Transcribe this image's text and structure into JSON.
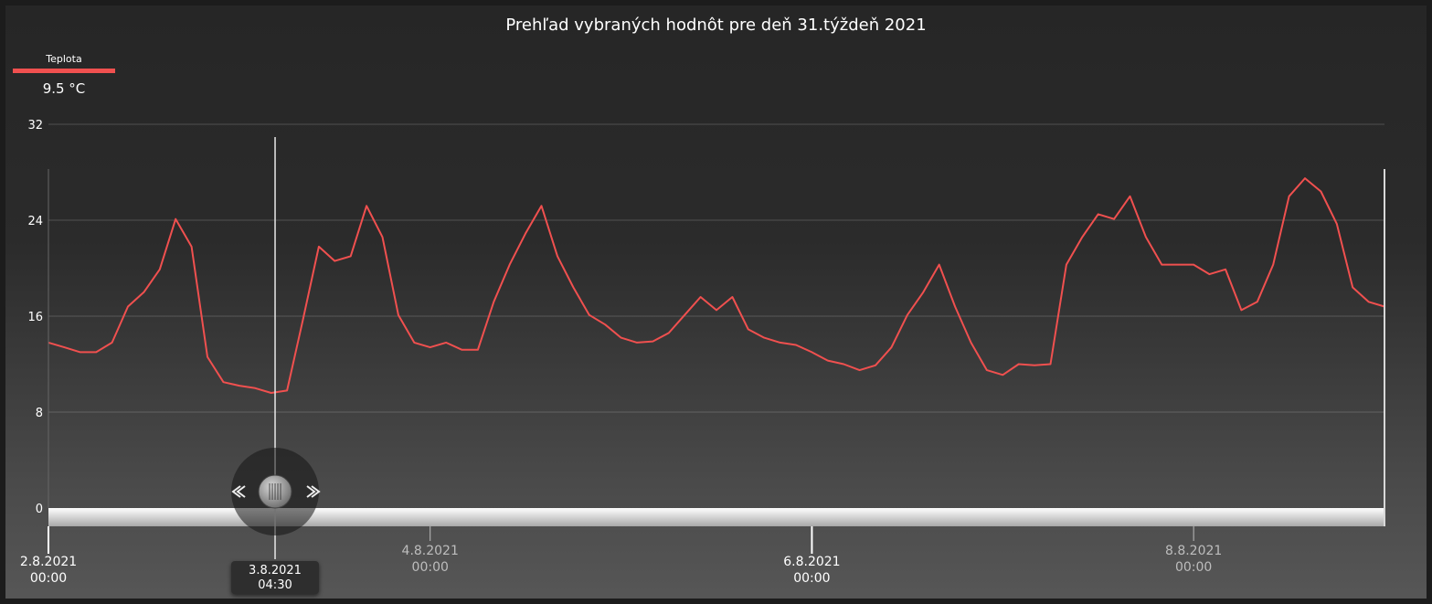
{
  "title": "Prehľad vybraných hodnôt pre deň 31.týždeň 2021",
  "legend": {
    "name": "Teplota",
    "color": "#f0504f",
    "current_value": "9.5 °C"
  },
  "cursor": {
    "date": "3.8.2021",
    "time": "04:30"
  },
  "chart_data": {
    "type": "line",
    "title": "Prehľad vybraných hodnôt pre deň 31.týždeň 2021",
    "xlabel": "",
    "ylabel": "",
    "ylim": [
      0,
      32
    ],
    "y_ticks": [
      "0",
      "8",
      "16",
      "24",
      "32"
    ],
    "x_range": [
      "2.8.2021 00:00",
      "9.8.2021 00:00"
    ],
    "x_ticks": [
      {
        "date": "2.8.2021",
        "time": "00:00",
        "hours": 0
      },
      {
        "date": "4.8.2021",
        "time": "00:00",
        "hours": 48
      },
      {
        "date": "6.8.2021",
        "time": "00:00",
        "hours": 96
      },
      {
        "date": "8.8.2021",
        "time": "00:00",
        "hours": 144
      }
    ],
    "grid": true,
    "legend": "top-left",
    "series": [
      {
        "name": "Teplota",
        "color": "#f0504f",
        "x_hours_from_2.8.2021_00:00": [
          0,
          2,
          4,
          6,
          8,
          10,
          12,
          14,
          16,
          18,
          20,
          22,
          24,
          26,
          28,
          30,
          32,
          34,
          36,
          38,
          40,
          42,
          44,
          46,
          48,
          50,
          52,
          54,
          56,
          58,
          60,
          62,
          64,
          66,
          68,
          70,
          72,
          74,
          76,
          78,
          80,
          82,
          84,
          86,
          88,
          90,
          92,
          94,
          96,
          98,
          100,
          102,
          104,
          106,
          108,
          110,
          112,
          114,
          116,
          118,
          120,
          122,
          124,
          126,
          128,
          130,
          132,
          134,
          136,
          138,
          140,
          142,
          144,
          146,
          148,
          150,
          152,
          154,
          156,
          158,
          160,
          162,
          164,
          166,
          168
        ],
        "values": [
          13.8,
          13.4,
          13.0,
          13.0,
          13.8,
          16.8,
          18.0,
          19.9,
          24.1,
          21.8,
          12.6,
          10.5,
          10.2,
          10.0,
          9.6,
          9.8,
          15.7,
          21.8,
          20.6,
          21.0,
          25.2,
          22.6,
          16.1,
          13.8,
          13.4,
          13.8,
          13.2,
          13.2,
          17.2,
          20.3,
          22.9,
          25.2,
          21.0,
          18.4,
          16.1,
          15.3,
          14.2,
          13.8,
          13.9,
          14.6,
          16.1,
          17.6,
          16.5,
          17.6,
          14.9,
          14.2,
          13.8,
          13.6,
          13.0,
          12.3,
          12.0,
          11.5,
          11.9,
          13.4,
          16.1,
          18.0,
          20.3,
          16.8,
          13.8,
          11.5,
          11.1,
          12.0,
          11.9,
          12.0,
          20.3,
          22.6,
          24.5,
          24.1,
          26.0,
          22.6,
          20.3,
          20.3,
          20.3,
          19.5,
          19.9,
          16.5,
          17.2,
          20.3,
          26.0,
          27.5,
          26.4,
          23.7,
          18.4,
          17.2,
          16.8
        ]
      }
    ]
  }
}
